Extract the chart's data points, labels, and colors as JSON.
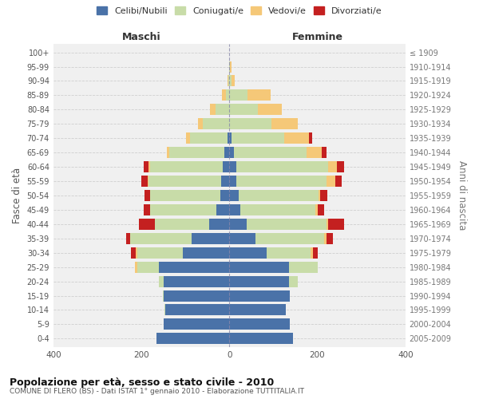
{
  "age_groups": [
    "0-4",
    "5-9",
    "10-14",
    "15-19",
    "20-24",
    "25-29",
    "30-34",
    "35-39",
    "40-44",
    "45-49",
    "50-54",
    "55-59",
    "60-64",
    "65-69",
    "70-74",
    "75-79",
    "80-84",
    "85-89",
    "90-94",
    "95-99",
    "100+"
  ],
  "birth_years": [
    "2005-2009",
    "2000-2004",
    "1995-1999",
    "1990-1994",
    "1985-1989",
    "1980-1984",
    "1975-1979",
    "1970-1974",
    "1965-1969",
    "1960-1964",
    "1955-1959",
    "1950-1954",
    "1945-1949",
    "1940-1944",
    "1935-1939",
    "1930-1934",
    "1925-1929",
    "1920-1924",
    "1915-1919",
    "1910-1914",
    "≤ 1909"
  ],
  "maschi": {
    "celibi": [
      165,
      150,
      145,
      150,
      150,
      160,
      105,
      85,
      45,
      30,
      20,
      18,
      15,
      12,
      5,
      0,
      0,
      0,
      0,
      0,
      0
    ],
    "coniugati": [
      0,
      0,
      3,
      2,
      10,
      50,
      105,
      140,
      125,
      150,
      160,
      165,
      165,
      125,
      85,
      60,
      32,
      8,
      3,
      0,
      0
    ],
    "vedovi": [
      0,
      0,
      0,
      0,
      0,
      5,
      3,
      0,
      0,
      0,
      0,
      2,
      3,
      5,
      8,
      12,
      12,
      8,
      2,
      1,
      0
    ],
    "divorziati": [
      0,
      0,
      0,
      0,
      0,
      0,
      10,
      10,
      35,
      15,
      12,
      15,
      12,
      0,
      0,
      0,
      0,
      0,
      0,
      0,
      0
    ]
  },
  "femmine": {
    "nubili": [
      145,
      138,
      128,
      138,
      135,
      135,
      85,
      60,
      40,
      25,
      22,
      15,
      15,
      10,
      5,
      0,
      0,
      0,
      0,
      0,
      0
    ],
    "coniugate": [
      0,
      0,
      0,
      0,
      20,
      65,
      100,
      155,
      180,
      170,
      180,
      205,
      210,
      165,
      120,
      95,
      65,
      42,
      5,
      2,
      0
    ],
    "vedove": [
      0,
      0,
      0,
      0,
      0,
      0,
      5,
      5,
      5,
      5,
      5,
      20,
      20,
      35,
      55,
      60,
      55,
      52,
      8,
      2,
      0
    ],
    "divorziate": [
      0,
      0,
      0,
      0,
      0,
      0,
      10,
      15,
      35,
      15,
      15,
      15,
      15,
      10,
      8,
      0,
      0,
      0,
      0,
      0,
      0
    ]
  },
  "colors": {
    "celibi_nubili": "#4A72A8",
    "coniugati_e": "#C8DCA8",
    "vedovi_e": "#F5C878",
    "divorziati_e": "#C42020"
  },
  "title": "Popolazione per età, sesso e stato civile - 2010",
  "subtitle": "COMUNE DI FLERO (BS) - Dati ISTAT 1° gennaio 2010 - Elaborazione TUTTITALIA.IT",
  "xlabel_left": "Maschi",
  "xlabel_right": "Femmine",
  "ylabel_left": "Fasce di età",
  "ylabel_right": "Anni di nascita",
  "xlim": 400,
  "legend_labels": [
    "Celibi/Nubili",
    "Coniugati/e",
    "Vedovi/e",
    "Divorziati/e"
  ],
  "background_color": "#ffffff",
  "plot_bg": "#f0f0f0",
  "bar_height": 0.78
}
